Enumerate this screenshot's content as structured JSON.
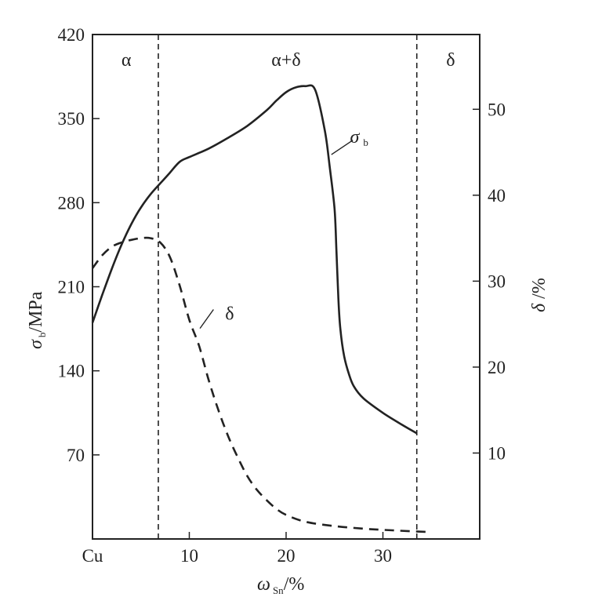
{
  "chart_data": {
    "type": "line",
    "title": "",
    "xlabel": {
      "symbol": "ω",
      "sub": "Sn",
      "unit": "/%"
    },
    "ylabel_left": {
      "symbol": "σ",
      "sub": "b",
      "unit": "/MPa"
    },
    "ylabel_right": {
      "symbol": "δ",
      "unit": " /%"
    },
    "xlim": [
      0,
      40
    ],
    "ylim_left": [
      0,
      420
    ],
    "ylim_right": [
      0,
      58.7
    ],
    "x_ticks": [
      {
        "value": 0,
        "label": "Cu"
      },
      {
        "value": 10,
        "label": "10"
      },
      {
        "value": 20,
        "label": "20"
      },
      {
        "value": 30,
        "label": "30"
      }
    ],
    "y_ticks_left": [
      70,
      140,
      210,
      280,
      350,
      420
    ],
    "y_ticks_right": [
      10,
      20,
      30,
      40,
      50
    ],
    "grid": false,
    "phase_boundaries": [
      6.8,
      33.5
    ],
    "phase_labels": [
      {
        "label": "α",
        "x": 3.5
      },
      {
        "label": "α+δ",
        "x": 20
      },
      {
        "label": "δ",
        "x": 37
      }
    ],
    "series": [
      {
        "name": "σ",
        "name_sub": "b",
        "axis": "left",
        "style": "solid",
        "points": [
          [
            0,
            180
          ],
          [
            1,
            203
          ],
          [
            2,
            225
          ],
          [
            3,
            245
          ],
          [
            4,
            262
          ],
          [
            5,
            276
          ],
          [
            6,
            287
          ],
          [
            7,
            296
          ],
          [
            8,
            305
          ],
          [
            9,
            314
          ],
          [
            10,
            318
          ],
          [
            12,
            325
          ],
          [
            14,
            334
          ],
          [
            16,
            344
          ],
          [
            18,
            357
          ],
          [
            19,
            365
          ],
          [
            20,
            372
          ],
          [
            21,
            376
          ],
          [
            22,
            377
          ],
          [
            23,
            374
          ],
          [
            24,
            340
          ],
          [
            24.5,
            310
          ],
          [
            25,
            275
          ],
          [
            25.2,
            240
          ],
          [
            25.4,
            200
          ],
          [
            25.6,
            175
          ],
          [
            26,
            152
          ],
          [
            26.5,
            137
          ],
          [
            27,
            127
          ],
          [
            28,
            117
          ],
          [
            30,
            105
          ],
          [
            32,
            95
          ],
          [
            33.5,
            88
          ]
        ]
      },
      {
        "name": "δ",
        "axis": "right",
        "style": "dashed",
        "points": [
          [
            0,
            31.5
          ],
          [
            1,
            33.0
          ],
          [
            2,
            34.0
          ],
          [
            3,
            34.5
          ],
          [
            4,
            34.8
          ],
          [
            5,
            35.0
          ],
          [
            6,
            35.0
          ],
          [
            7,
            34.5
          ],
          [
            8,
            32.8
          ],
          [
            9,
            29.5
          ],
          [
            10,
            25.5
          ],
          [
            11,
            22.5
          ],
          [
            12,
            18.5
          ],
          [
            13,
            15.0
          ],
          [
            14,
            12.0
          ],
          [
            15,
            9.5
          ],
          [
            16,
            7.3
          ],
          [
            17,
            5.7
          ],
          [
            18,
            4.5
          ],
          [
            19,
            3.5
          ],
          [
            20,
            2.8
          ],
          [
            22,
            2.0
          ],
          [
            25,
            1.5
          ],
          [
            28,
            1.2
          ],
          [
            31,
            1.0
          ],
          [
            35,
            0.8
          ]
        ]
      }
    ]
  }
}
